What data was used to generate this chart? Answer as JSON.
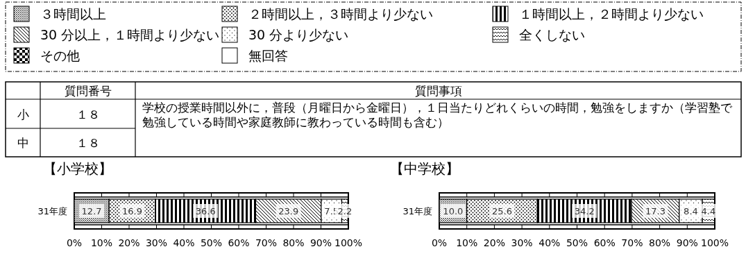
{
  "chart_data": [
    {
      "type": "other",
      "annotations": [
        "質問番号",
        "質問事項",
        "小",
        "１８",
        "中",
        "１８",
        "学校の授業時間以外に，普段（月曜日から金曜日），１日当たりどれくらいの時間，勉強をしますか（学習塾で勉強している時間や家庭教師に教わっている時間も含む）"
      ]
    },
    {
      "type": "bar",
      "title": "【小学校】",
      "orientation": "horizontal",
      "stacked": true,
      "categories": [
        "31年度"
      ],
      "legend": "top",
      "data_labels": true,
      "xlim": [
        0,
        100
      ],
      "xticks": [
        {
          "value": 0,
          "label": "0%"
        },
        {
          "value": 10,
          "label": "10%"
        },
        {
          "value": 20,
          "label": "20%"
        },
        {
          "value": 30,
          "label": "30%"
        },
        {
          "value": 40,
          "label": "40%"
        },
        {
          "value": 50,
          "label": "50%"
        },
        {
          "value": 60,
          "label": "60%"
        },
        {
          "value": 70,
          "label": "70%"
        },
        {
          "value": 80,
          "label": "80%"
        },
        {
          "value": 90,
          "label": "90%"
        },
        {
          "value": 100,
          "label": "100%"
        }
      ],
      "series": [
        {
          "name": "３時間以上",
          "values": [
            12.7
          ]
        },
        {
          "name": "２時間以上，３時間より少ない",
          "values": [
            16.9
          ]
        },
        {
          "name": "１時間以上，２時間より少ない",
          "values": [
            36.6
          ]
        },
        {
          "name": "30 分以上，１時間より少ない",
          "values": [
            23.9
          ]
        },
        {
          "name": "30 分より少ない",
          "values": [
            7.5
          ]
        },
        {
          "name": "全くしない",
          "values": [
            2.2
          ]
        },
        {
          "name": "その他",
          "values": [
            null
          ]
        },
        {
          "name": "無回答",
          "values": [
            null
          ]
        }
      ]
    },
    {
      "type": "bar",
      "title": "【中学校】",
      "orientation": "horizontal",
      "stacked": true,
      "categories": [
        "31年度"
      ],
      "xlim": [
        0,
        100
      ],
      "xticks": [
        {
          "value": 0,
          "label": "0%"
        },
        {
          "value": 10,
          "label": "10%"
        },
        {
          "value": 20,
          "label": "20%"
        },
        {
          "value": 30,
          "label": "30%"
        },
        {
          "value": 40,
          "label": "40%"
        },
        {
          "value": 50,
          "label": "50%"
        },
        {
          "value": 60,
          "label": "60%"
        },
        {
          "value": 70,
          "label": "70%"
        },
        {
          "value": 80,
          "label": "80%"
        },
        {
          "value": 90,
          "label": "90%"
        },
        {
          "value": 100,
          "label": "100%"
        }
      ],
      "series": [
        {
          "values": [
            10.0
          ],
          "value_labels": [
            "10.0"
          ]
        },
        {
          "values": [
            25.6
          ],
          "value_labels": [
            "25.6"
          ]
        },
        {
          "values": [
            34.2
          ],
          "value_labels": [
            "34.2"
          ]
        },
        {
          "values": [
            17.3
          ],
          "value_labels": [
            "17.3"
          ]
        },
        {
          "values": [
            8.4
          ],
          "value_labels": [
            "8.4"
          ]
        },
        {
          "values": [
            4.4
          ],
          "value_labels": [
            "4.4"
          ]
        },
        {
          "values": [
            null
          ]
        },
        {
          "values": [
            null
          ]
        }
      ]
    }
  ]
}
